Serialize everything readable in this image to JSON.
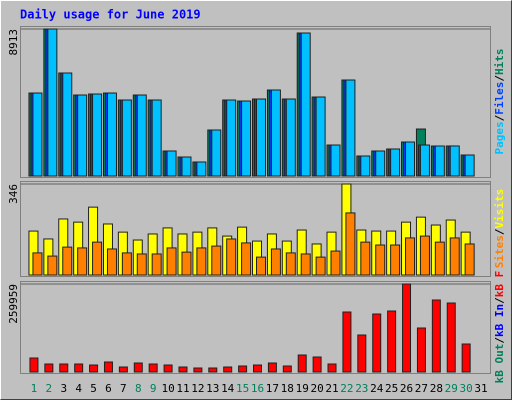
{
  "chart_data": [
    {
      "type": "bar",
      "title": "Daily usage for June 2019",
      "ylim": [
        0,
        8913
      ],
      "yticks": [
        8913
      ],
      "grid": true,
      "legend_separator": "/",
      "series": [
        {
          "name": "Hits",
          "color": "#00805c",
          "values": [
            5030,
            8913,
            6245,
            4910,
            4970,
            5030,
            4607,
            4910,
            4607,
            1516,
            1152,
            849,
            2789,
            4607,
            4546,
            4668,
            5214,
            4668,
            8670,
            4789,
            1879,
            5820,
            1212,
            1516,
            1637,
            2061,
            2849,
            1819,
            1820,
            1273,
            null
          ]
        },
        {
          "name": "Files",
          "color": "#0040ff",
          "values": [
            5030,
            8913,
            6245,
            4910,
            4970,
            5030,
            4607,
            4910,
            4607,
            1516,
            1152,
            849,
            2789,
            4607,
            4546,
            4668,
            5214,
            4668,
            8670,
            4789,
            1879,
            5820,
            1212,
            1516,
            1637,
            2061,
            1879,
            1819,
            1820,
            1273,
            null
          ]
        },
        {
          "name": "Pages",
          "color": "#00c0ff",
          "values": [
            5030,
            8913,
            6245,
            4910,
            4970,
            5030,
            4607,
            4910,
            4607,
            1516,
            1152,
            849,
            2789,
            4607,
            4546,
            4668,
            5214,
            4668,
            8670,
            4789,
            1879,
            5820,
            1212,
            1516,
            1637,
            2061,
            1879,
            1819,
            1820,
            1273,
            null
          ]
        }
      ]
    },
    {
      "type": "bar",
      "ylim": [
        0,
        346
      ],
      "yticks": [
        346
      ],
      "grid": true,
      "legend_separator": "/",
      "series": [
        {
          "name": "Visits",
          "color": "#ffff00",
          "values": [
            167,
            137,
            213,
            201,
            258,
            194,
            163,
            133,
            156,
            179,
            156,
            163,
            179,
            148,
            182,
            129,
            156,
            129,
            171,
            118,
            163,
            346,
            171,
            167,
            167,
            201,
            220,
            190,
            209,
            163,
            null
          ]
        },
        {
          "name": "Sites",
          "color": "#ff8000",
          "values": [
            84,
            72,
            106,
            103,
            125,
            99,
            84,
            80,
            80,
            103,
            87,
            103,
            110,
            137,
            122,
            68,
            99,
            84,
            80,
            68,
            91,
            236,
            125,
            114,
            114,
            141,
            148,
            125,
            141,
            118,
            null
          ]
        }
      ]
    },
    {
      "type": "bar",
      "ylim": [
        0,
        259959
      ],
      "yticks": [
        259959
      ],
      "grid": true,
      "legend_separator": "/",
      "categories": [
        "1",
        "2",
        "3",
        "4",
        "5",
        "6",
        "7",
        "8",
        "9",
        "10",
        "11",
        "12",
        "13",
        "14",
        "15",
        "16",
        "17",
        "18",
        "19",
        "20",
        "21",
        "22",
        "23",
        "24",
        "25",
        "26",
        "27",
        "28",
        "29",
        "30",
        "31"
      ],
      "category_colors": [
        "#00805c",
        "#00805c",
        "#000000",
        "#000000",
        "#000000",
        "#000000",
        "#000000",
        "#00805c",
        "#00805c",
        "#000000",
        "#000000",
        "#000000",
        "#000000",
        "#000000",
        "#00805c",
        "#00805c",
        "#000000",
        "#000000",
        "#000000",
        "#000000",
        "#000000",
        "#00805c",
        "#00805c",
        "#000000",
        "#000000",
        "#000000",
        "#000000",
        "#000000",
        "#00805c",
        "#00805c",
        "#000000"
      ],
      "series": [
        {
          "name": "kB F",
          "color": "#ff0000",
          "values": [
            41360,
            23630,
            23630,
            23630,
            20680,
            29540,
            14770,
            26590,
            23630,
            20680,
            14770,
            11820,
            11820,
            14770,
            17720,
            20680,
            26590,
            17720,
            50220,
            44310,
            23630,
            177240,
            109300,
            171330,
            180190,
            259959,
            129980,
            212690,
            203830,
            82710,
            null
          ]
        },
        {
          "name": "kB In",
          "color": "#0000ff"
        },
        {
          "name": "kB Out",
          "color": "#00805c"
        }
      ]
    }
  ]
}
